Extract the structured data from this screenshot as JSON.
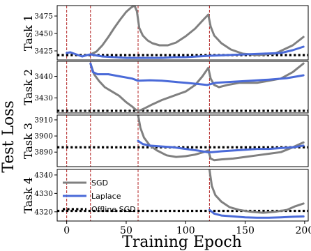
{
  "chart_data": {
    "type": "line",
    "ylabel": "Test Loss",
    "xlabel": "Training Epoch",
    "xlim": [
      -8,
      203
    ],
    "xticks": [
      0,
      50,
      100,
      150,
      200
    ],
    "task_boundaries": [
      0,
      20,
      60,
      120
    ],
    "legend": {
      "placement": "inside bottom panel, left",
      "entries": [
        "SGD",
        "Laplace",
        "Offline SGD"
      ]
    },
    "colors": {
      "sgd": "#808080",
      "laplace": "#4a6ad8",
      "offline": "#000000",
      "boundary": "#b22222"
    },
    "panels": [
      {
        "label": "Task 1",
        "ylim": [
          3412,
          3490
        ],
        "yticks": [
          3425,
          3450,
          3475
        ],
        "offline": 3419,
        "series": [
          {
            "key": "sgd",
            "name": "SGD",
            "points": [
              [
                20,
                3420
              ],
              [
                25,
                3424
              ],
              [
                30,
                3433
              ],
              [
                35,
                3445
              ],
              [
                40,
                3458
              ],
              [
                45,
                3470
              ],
              [
                50,
                3481
              ],
              [
                54,
                3487
              ],
              [
                57,
                3490
              ],
              [
                59,
                3482
              ],
              [
                61,
                3458
              ],
              [
                64,
                3447
              ],
              [
                68,
                3440
              ],
              [
                72,
                3436
              ],
              [
                78,
                3433
              ],
              [
                85,
                3433
              ],
              [
                92,
                3437
              ],
              [
                100,
                3446
              ],
              [
                108,
                3457
              ],
              [
                115,
                3470
              ],
              [
                119,
                3477
              ],
              [
                121,
                3460
              ],
              [
                124,
                3447
              ],
              [
                130,
                3436
              ],
              [
                138,
                3427
              ],
              [
                148,
                3421
              ],
              [
                160,
                3419
              ],
              [
                175,
                3421
              ],
              [
                190,
                3433
              ],
              [
                199,
                3445
              ]
            ]
          },
          {
            "key": "laplace",
            "name": "Laplace",
            "points": [
              [
                0,
                3422
              ],
              [
                3,
                3423
              ],
              [
                8,
                3420
              ],
              [
                13,
                3417
              ],
              [
                17,
                3419
              ],
              [
                20,
                3420
              ],
              [
                30,
                3417
              ],
              [
                40,
                3416
              ],
              [
                50,
                3415
              ],
              [
                60,
                3415
              ],
              [
                70,
                3415
              ],
              [
                80,
                3415
              ],
              [
                90,
                3416
              ],
              [
                100,
                3416
              ],
              [
                110,
                3417
              ],
              [
                120,
                3418
              ],
              [
                135,
                3419
              ],
              [
                150,
                3420
              ],
              [
                165,
                3421
              ],
              [
                180,
                3422
              ],
              [
                190,
                3426
              ],
              [
                199,
                3431
              ]
            ]
          }
        ]
      },
      {
        "label": "Task 2",
        "ylim": [
          3423,
          3447
        ],
        "yticks": [
          3430,
          3440
        ],
        "offline": 3424,
        "series": [
          {
            "key": "sgd",
            "name": "SGD",
            "points": [
              [
                20,
                3446
              ],
              [
                23,
                3441
              ],
              [
                27,
                3438
              ],
              [
                32,
                3435
              ],
              [
                38,
                3433
              ],
              [
                44,
                3431
              ],
              [
                50,
                3428
              ],
              [
                55,
                3426
              ],
              [
                58,
                3424.5
              ],
              [
                61,
                3424
              ],
              [
                65,
                3425
              ],
              [
                72,
                3427
              ],
              [
                80,
                3429
              ],
              [
                90,
                3431
              ],
              [
                100,
                3433
              ],
              [
                108,
                3436
              ],
              [
                114,
                3440
              ],
              [
                119,
                3444
              ],
              [
                121,
                3439
              ],
              [
                124,
                3436
              ],
              [
                128,
                3435
              ],
              [
                135,
                3436
              ],
              [
                145,
                3437
              ],
              [
                160,
                3437
              ],
              [
                170,
                3438
              ],
              [
                180,
                3439
              ],
              [
                190,
                3442
              ],
              [
                199,
                3446
              ]
            ]
          },
          {
            "key": "laplace",
            "name": "Laplace",
            "points": [
              [
                20,
                3446
              ],
              [
                22,
                3442
              ],
              [
                26,
                3441
              ],
              [
                35,
                3441
              ],
              [
                45,
                3440
              ],
              [
                55,
                3439
              ],
              [
                60,
                3438
              ],
              [
                70,
                3438.2
              ],
              [
                80,
                3438
              ],
              [
                90,
                3437.5
              ],
              [
                100,
                3437
              ],
              [
                110,
                3436.5
              ],
              [
                118,
                3436
              ],
              [
                125,
                3437
              ],
              [
                140,
                3437.5
              ],
              [
                155,
                3438
              ],
              [
                170,
                3438.5
              ],
              [
                185,
                3439.2
              ],
              [
                199,
                3440.5
              ]
            ]
          }
        ]
      },
      {
        "label": "Task 3",
        "ylim": [
          3881,
          3913
        ],
        "yticks": [
          3890,
          3900,
          3910
        ],
        "offline": 3893,
        "series": [
          {
            "key": "sgd",
            "name": "SGD",
            "points": [
              [
                60,
                3913
              ],
              [
                62,
                3905
              ],
              [
                65,
                3899
              ],
              [
                70,
                3894
              ],
              [
                76,
                3891
              ],
              [
                84,
                3888
              ],
              [
                92,
                3887
              ],
              [
                100,
                3887.5
              ],
              [
                108,
                3888.5
              ],
              [
                115,
                3890
              ],
              [
                119,
                3891
              ],
              [
                121,
                3886
              ],
              [
                124,
                3885
              ],
              [
                130,
                3885.5
              ],
              [
                140,
                3886
              ],
              [
                150,
                3887
              ],
              [
                160,
                3888
              ],
              [
                170,
                3889
              ],
              [
                180,
                3890
              ],
              [
                190,
                3893
              ],
              [
                199,
                3896
              ]
            ]
          },
          {
            "key": "laplace",
            "name": "Laplace",
            "points": [
              [
                60,
                3897
              ],
              [
                64,
                3895
              ],
              [
                70,
                3894
              ],
              [
                80,
                3893.5
              ],
              [
                90,
                3893
              ],
              [
                100,
                3892
              ],
              [
                110,
                3891
              ],
              [
                118,
                3890
              ],
              [
                122,
                3890
              ],
              [
                130,
                3890.5
              ],
              [
                140,
                3891
              ],
              [
                150,
                3891.5
              ],
              [
                160,
                3892
              ],
              [
                170,
                3892
              ],
              [
                180,
                3892.5
              ],
              [
                190,
                3893
              ],
              [
                199,
                3894
              ]
            ]
          }
        ]
      },
      {
        "label": "Task 4",
        "ylim": [
          4315,
          4343
        ],
        "yticks": [
          4320,
          4330,
          4340
        ],
        "offline": 4320.5,
        "series": [
          {
            "key": "sgd",
            "name": "SGD",
            "points": [
              [
                120,
                4343
              ],
              [
                122,
                4334
              ],
              [
                125,
                4329
              ],
              [
                130,
                4325.5
              ],
              [
                137,
                4322.5
              ],
              [
                145,
                4321
              ],
              [
                155,
                4320
              ],
              [
                165,
                4319.5
              ],
              [
                175,
                4320
              ],
              [
                185,
                4321
              ],
              [
                192,
                4323
              ],
              [
                199,
                4324.5
              ]
            ]
          },
          {
            "key": "laplace",
            "name": "Laplace",
            "points": [
              [
                120,
                4321
              ],
              [
                124,
                4319
              ],
              [
                130,
                4318
              ],
              [
                140,
                4317.5
              ],
              [
                150,
                4317
              ],
              [
                160,
                4316.8
              ],
              [
                170,
                4316.8
              ],
              [
                180,
                4317
              ],
              [
                190,
                4317.3
              ],
              [
                199,
                4317.5
              ]
            ]
          }
        ]
      }
    ]
  }
}
